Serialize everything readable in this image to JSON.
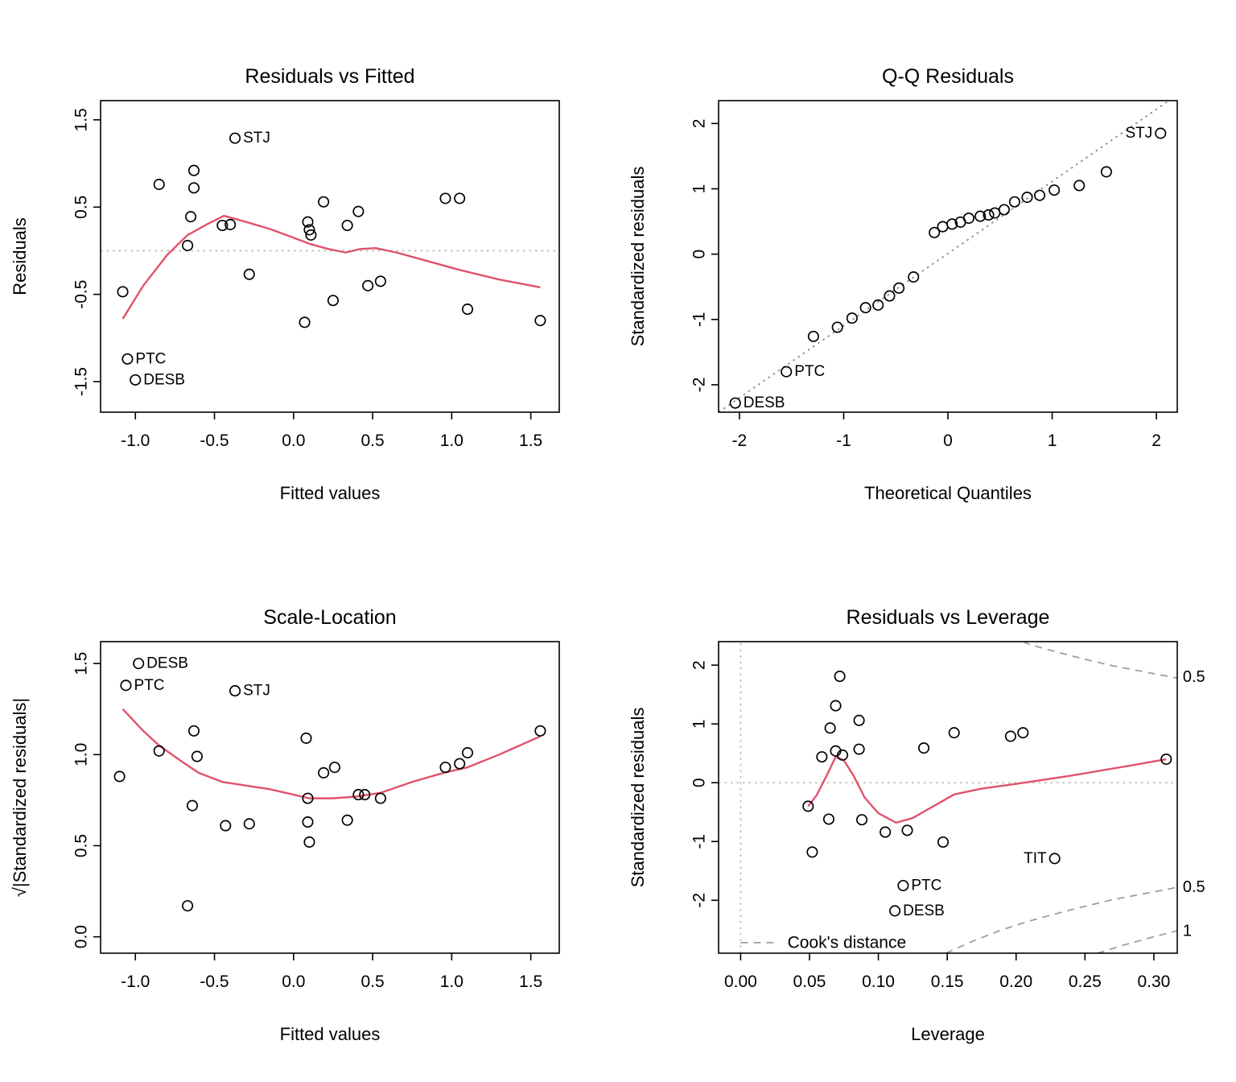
{
  "page": {
    "background": "#ffffff"
  },
  "colors": {
    "smooth_line": "#DF536B",
    "point_stroke": "#000000",
    "light_dotted": "#bdbdbd",
    "qq_dotted": "#8a8a8a",
    "cook_gray": "#9e9e9e"
  },
  "chart_data": [
    {
      "type": "scatter",
      "title": "Residuals vs Fitted",
      "xlabel": "Fitted values",
      "ylabel": "Residuals",
      "xlim": [
        -1.22,
        1.68
      ],
      "ylim": [
        -1.85,
        1.72
      ],
      "xticks": {
        "values": [
          -1.0,
          -0.5,
          0.0,
          0.5,
          1.0,
          1.5
        ],
        "labels": [
          "-1.0",
          "-0.5",
          "0.0",
          "0.5",
          "1.0",
          "1.5"
        ]
      },
      "yticks": {
        "values": [
          -1.5,
          -0.5,
          0.5,
          1.5
        ],
        "labels": [
          "-1.5",
          "-0.5",
          "0.5",
          "1.5"
        ]
      },
      "lines": [
        {
          "name": "zero-line",
          "style": "dotted",
          "color": "#bdbdbd",
          "width": 1.8,
          "points": [
            [
              -1.22,
              0
            ],
            [
              1.68,
              0
            ]
          ]
        },
        {
          "name": "loess-smooth",
          "style": "solid",
          "color": "#DF536B",
          "width": 2.4,
          "points": [
            [
              -1.08,
              -0.78
            ],
            [
              -0.95,
              -0.4
            ],
            [
              -0.8,
              -0.05
            ],
            [
              -0.67,
              0.18
            ],
            [
              -0.55,
              0.3
            ],
            [
              -0.44,
              0.4
            ],
            [
              -0.3,
              0.33
            ],
            [
              -0.15,
              0.25
            ],
            [
              0.0,
              0.15
            ],
            [
              0.1,
              0.08
            ],
            [
              0.22,
              0.02
            ],
            [
              0.33,
              -0.02
            ],
            [
              0.42,
              0.02
            ],
            [
              0.52,
              0.03
            ],
            [
              0.65,
              -0.02
            ],
            [
              0.85,
              -0.12
            ],
            [
              1.05,
              -0.22
            ],
            [
              1.3,
              -0.33
            ],
            [
              1.56,
              -0.42
            ]
          ]
        }
      ],
      "points": [
        [
          -1.08,
          -0.47
        ],
        [
          -0.85,
          0.76
        ],
        [
          -0.63,
          0.92
        ],
        [
          -0.63,
          0.72
        ],
        [
          -0.65,
          0.39
        ],
        [
          -0.67,
          0.06
        ],
        [
          -0.45,
          0.29
        ],
        [
          -0.4,
          0.3
        ],
        [
          -0.28,
          -0.27
        ],
        [
          0.09,
          0.33
        ],
        [
          0.1,
          0.24
        ],
        [
          0.11,
          0.18
        ],
        [
          0.07,
          -0.82
        ],
        [
          0.19,
          0.56
        ],
        [
          0.25,
          -0.57
        ],
        [
          0.34,
          0.29
        ],
        [
          0.41,
          0.45
        ],
        [
          0.47,
          -0.4
        ],
        [
          0.55,
          -0.35
        ],
        [
          0.96,
          0.6
        ],
        [
          1.05,
          0.6
        ],
        [
          1.1,
          -0.67
        ],
        [
          1.56,
          -0.8
        ]
      ],
      "labeled_points": [
        {
          "x": -0.37,
          "y": 1.29,
          "label": "STJ",
          "side": "right"
        },
        {
          "x": -1.05,
          "y": -1.24,
          "label": "PTC",
          "side": "right"
        },
        {
          "x": -1.0,
          "y": -1.48,
          "label": "DESB",
          "side": "right"
        }
      ],
      "margin_texts": []
    },
    {
      "type": "scatter",
      "title": "Q-Q Residuals",
      "xlabel": "Theoretical Quantiles",
      "ylabel": "Standardized residuals",
      "xlim": [
        -2.2,
        2.2
      ],
      "ylim": [
        -2.42,
        2.35
      ],
      "xticks": {
        "values": [
          -2,
          -1,
          0,
          1,
          2
        ],
        "labels": [
          "-2",
          "-1",
          "0",
          "1",
          "2"
        ]
      },
      "yticks": {
        "values": [
          -2,
          -1,
          0,
          1,
          2
        ],
        "labels": [
          "-2",
          "-1",
          "0",
          "1",
          "2"
        ]
      },
      "lines": [
        {
          "name": "qq-line",
          "style": "dotted",
          "color": "#8a8a8a",
          "width": 1.8,
          "points": [
            [
              -2.2,
              -2.42
            ],
            [
              2.12,
              2.35
            ]
          ]
        }
      ],
      "points": [
        [
          -1.29,
          -1.26
        ],
        [
          -1.06,
          -1.12
        ],
        [
          -0.92,
          -0.98
        ],
        [
          -0.79,
          -0.82
        ],
        [
          -0.67,
          -0.78
        ],
        [
          -0.56,
          -0.64
        ],
        [
          -0.47,
          -0.52
        ],
        [
          -0.33,
          -0.35
        ],
        [
          -0.13,
          0.33
        ],
        [
          -0.05,
          0.42
        ],
        [
          0.04,
          0.46
        ],
        [
          0.12,
          0.49
        ],
        [
          0.2,
          0.55
        ],
        [
          0.31,
          0.58
        ],
        [
          0.39,
          0.6
        ],
        [
          0.45,
          0.63
        ],
        [
          0.54,
          0.68
        ],
        [
          0.64,
          0.8
        ],
        [
          0.76,
          0.87
        ],
        [
          0.88,
          0.9
        ],
        [
          1.02,
          0.98
        ],
        [
          1.26,
          1.05
        ],
        [
          1.52,
          1.26
        ]
      ],
      "labeled_points": [
        {
          "x": 2.04,
          "y": 1.85,
          "label": "STJ",
          "side": "left"
        },
        {
          "x": -1.55,
          "y": -1.8,
          "label": "PTC",
          "side": "right"
        },
        {
          "x": -2.04,
          "y": -2.28,
          "label": "DESB",
          "side": "right"
        }
      ],
      "margin_texts": []
    },
    {
      "type": "scatter",
      "title": "Scale-Location",
      "xlabel": "Fitted values",
      "ylabel": "√|Standardized residuals|",
      "xlim": [
        -1.22,
        1.68
      ],
      "ylim": [
        -0.09,
        1.62
      ],
      "xticks": {
        "values": [
          -1.0,
          -0.5,
          0.0,
          0.5,
          1.0,
          1.5
        ],
        "labels": [
          "-1.0",
          "-0.5",
          "0.0",
          "0.5",
          "1.0",
          "1.5"
        ]
      },
      "yticks": {
        "values": [
          0.0,
          0.5,
          1.0,
          1.5
        ],
        "labels": [
          "0.0",
          "0.5",
          "1.0",
          "1.5"
        ]
      },
      "lines": [
        {
          "name": "loess-smooth",
          "style": "solid",
          "color": "#DF536B",
          "width": 2.4,
          "points": [
            [
              -1.08,
              1.25
            ],
            [
              -0.95,
              1.13
            ],
            [
              -0.85,
              1.05
            ],
            [
              -0.72,
              0.97
            ],
            [
              -0.6,
              0.9
            ],
            [
              -0.45,
              0.85
            ],
            [
              -0.3,
              0.83
            ],
            [
              -0.15,
              0.81
            ],
            [
              0.0,
              0.78
            ],
            [
              0.1,
              0.76
            ],
            [
              0.25,
              0.76
            ],
            [
              0.4,
              0.77
            ],
            [
              0.55,
              0.79
            ],
            [
              0.75,
              0.85
            ],
            [
              0.95,
              0.9
            ],
            [
              1.1,
              0.93
            ],
            [
              1.3,
              1.0
            ],
            [
              1.56,
              1.1
            ]
          ]
        }
      ],
      "points": [
        [
          -1.1,
          0.88
        ],
        [
          -0.85,
          1.02
        ],
        [
          -0.63,
          1.13
        ],
        [
          -0.61,
          0.99
        ],
        [
          -0.64,
          0.72
        ],
        [
          -0.67,
          0.17
        ],
        [
          -0.43,
          0.61
        ],
        [
          -0.28,
          0.62
        ],
        [
          0.08,
          1.09
        ],
        [
          0.09,
          0.76
        ],
        [
          0.09,
          0.63
        ],
        [
          0.1,
          0.52
        ],
        [
          0.19,
          0.9
        ],
        [
          0.26,
          0.93
        ],
        [
          0.34,
          0.64
        ],
        [
          0.41,
          0.78
        ],
        [
          0.45,
          0.78
        ],
        [
          0.55,
          0.76
        ],
        [
          0.96,
          0.93
        ],
        [
          1.05,
          0.95
        ],
        [
          1.1,
          1.01
        ],
        [
          1.56,
          1.13
        ]
      ],
      "labeled_points": [
        {
          "x": -0.98,
          "y": 1.5,
          "label": "DESB",
          "side": "right"
        },
        {
          "x": -1.06,
          "y": 1.38,
          "label": "PTC",
          "side": "right"
        },
        {
          "x": -0.37,
          "y": 1.35,
          "label": "STJ",
          "side": "right"
        }
      ],
      "margin_texts": []
    },
    {
      "type": "scatter",
      "title": "Residuals vs Leverage",
      "xlabel": "Leverage",
      "ylabel": "Standardized residuals",
      "xlim": [
        -0.016,
        0.317
      ],
      "ylim": [
        -2.9,
        2.4
      ],
      "xticks": {
        "values": [
          0.0,
          0.05,
          0.1,
          0.15,
          0.2,
          0.25,
          0.3
        ],
        "labels": [
          "0.00",
          "0.05",
          "0.10",
          "0.15",
          "0.20",
          "0.25",
          "0.30"
        ]
      },
      "yticks": {
        "values": [
          -2,
          -1,
          0,
          1,
          2
        ],
        "labels": [
          "-2",
          "-1",
          "0",
          "1",
          "2"
        ]
      },
      "lines": [
        {
          "name": "zero-vline",
          "style": "dotted",
          "color": "#bdbdbd",
          "width": 1.8,
          "points": [
            [
              0,
              -2.9
            ],
            [
              0,
              2.4
            ]
          ]
        },
        {
          "name": "zero-hline",
          "style": "dotted",
          "color": "#bdbdbd",
          "width": 1.8,
          "points": [
            [
              -0.016,
              0
            ],
            [
              0.317,
              0
            ]
          ]
        },
        {
          "name": "cook-contour-05-top",
          "style": "dashed",
          "color": "#9e9e9e",
          "width": 1.8,
          "points": [
            [
              0.205,
              2.4
            ],
            [
              0.21,
              2.35
            ],
            [
              0.23,
              2.22
            ],
            [
              0.25,
              2.1
            ],
            [
              0.27,
              1.99
            ],
            [
              0.29,
              1.9
            ],
            [
              0.317,
              1.78
            ]
          ]
        },
        {
          "name": "cook-contour-05-bottom",
          "style": "dashed",
          "color": "#9e9e9e",
          "width": 1.8,
          "points": [
            [
              0.149,
              -2.9
            ],
            [
              0.17,
              -2.68
            ],
            [
              0.19,
              -2.5
            ],
            [
              0.21,
              -2.35
            ],
            [
              0.24,
              -2.16
            ],
            [
              0.27,
              -1.99
            ],
            [
              0.317,
              -1.78
            ]
          ]
        },
        {
          "name": "cook-contour-1-bottom",
          "style": "dashed",
          "color": "#9e9e9e",
          "width": 1.8,
          "points": [
            [
              0.259,
              -2.9
            ],
            [
              0.28,
              -2.75
            ],
            [
              0.3,
              -2.62
            ],
            [
              0.317,
              -2.52
            ]
          ]
        },
        {
          "name": "cook-legend-dash",
          "style": "dashed",
          "color": "#9e9e9e",
          "width": 1.8,
          "points": [
            [
              0.0,
              -2.72
            ],
            [
              0.028,
              -2.72
            ]
          ]
        },
        {
          "name": "loess-smooth",
          "style": "solid",
          "color": "#DF536B",
          "width": 2.4,
          "points": [
            [
              0.049,
              -0.4
            ],
            [
              0.055,
              -0.22
            ],
            [
              0.062,
              0.1
            ],
            [
              0.069,
              0.44
            ],
            [
              0.075,
              0.38
            ],
            [
              0.082,
              0.12
            ],
            [
              0.09,
              -0.25
            ],
            [
              0.1,
              -0.52
            ],
            [
              0.113,
              -0.68
            ],
            [
              0.125,
              -0.6
            ],
            [
              0.14,
              -0.4
            ],
            [
              0.155,
              -0.2
            ],
            [
              0.175,
              -0.1
            ],
            [
              0.2,
              -0.02
            ],
            [
              0.24,
              0.12
            ],
            [
              0.28,
              0.28
            ],
            [
              0.309,
              0.4
            ]
          ]
        }
      ],
      "points": [
        [
          0.049,
          -0.4
        ],
        [
          0.052,
          -1.18
        ],
        [
          0.059,
          0.44
        ],
        [
          0.064,
          -0.62
        ],
        [
          0.065,
          0.93
        ],
        [
          0.069,
          1.31
        ],
        [
          0.069,
          0.54
        ],
        [
          0.072,
          1.81
        ],
        [
          0.074,
          0.47
        ],
        [
          0.086,
          1.06
        ],
        [
          0.086,
          0.57
        ],
        [
          0.088,
          -0.63
        ],
        [
          0.105,
          -0.84
        ],
        [
          0.121,
          -0.81
        ],
        [
          0.133,
          0.59
        ],
        [
          0.147,
          -1.01
        ],
        [
          0.155,
          0.85
        ],
        [
          0.196,
          0.79
        ],
        [
          0.205,
          0.85
        ],
        [
          0.309,
          0.4
        ]
      ],
      "labeled_points": [
        {
          "x": 0.228,
          "y": -1.29,
          "label": "TIT",
          "side": "left"
        },
        {
          "x": 0.118,
          "y": -1.75,
          "label": "PTC",
          "side": "right"
        },
        {
          "x": 0.112,
          "y": -2.18,
          "label": "DESB",
          "side": "right"
        }
      ],
      "margin_texts": [
        {
          "x": 0.321,
          "y": 1.8,
          "text": "0.5",
          "anchor": "start",
          "color": "#9e9e9e",
          "size": 20
        },
        {
          "x": 0.321,
          "y": -1.78,
          "text": "0.5",
          "anchor": "start",
          "color": "#9e9e9e",
          "size": 20
        },
        {
          "x": 0.321,
          "y": -2.52,
          "text": "1",
          "anchor": "start",
          "color": "#9e9e9e",
          "size": 20
        },
        {
          "x": 0.034,
          "y": -2.72,
          "text": "Cook's distance",
          "anchor": "start",
          "color": "#9e9e9e",
          "size": 21
        }
      ]
    }
  ]
}
